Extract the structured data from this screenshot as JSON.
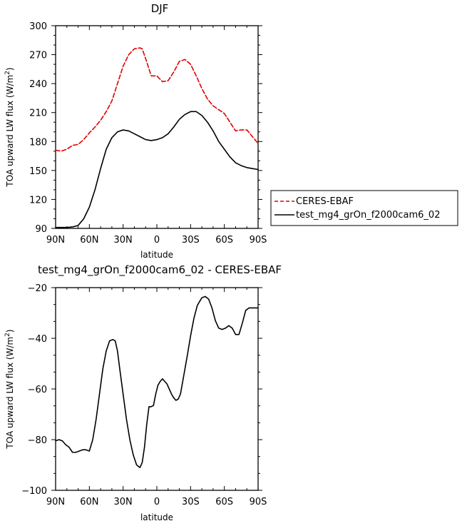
{
  "chart_data": [
    {
      "type": "line",
      "title": "DJF",
      "xlabel": "latitude",
      "ylabel": "TOA upward LW flux (W/m²)",
      "ylabel_prefix": "TOA upward LW flux (W/m",
      "ylabel_sup": "2",
      "ylabel_suffix": ")",
      "xlim": [
        90,
        -90
      ],
      "ylim": [
        90,
        300
      ],
      "x_ticks": [
        90,
        60,
        30,
        0,
        -30,
        -60,
        -90
      ],
      "x_tick_labels": [
        "90N",
        "60N",
        "30N",
        "0",
        "30S",
        "60S",
        "90S"
      ],
      "y_ticks": [
        90,
        120,
        150,
        180,
        210,
        240,
        270,
        300
      ],
      "y_tick_labels": [
        "90",
        "120",
        "150",
        "180",
        "210",
        "240",
        "270",
        "300"
      ],
      "legend_position": "right",
      "series": [
        {
          "name": "CERES-EBAF",
          "color": "#e00000",
          "dash": "dashed",
          "x": [
            90,
            85,
            80,
            75,
            70,
            65,
            60,
            55,
            50,
            45,
            40,
            35,
            30,
            25,
            20,
            15,
            13,
            10,
            5,
            0,
            -5,
            -10,
            -15,
            -20,
            -25,
            -30,
            -35,
            -40,
            -45,
            -50,
            -55,
            -60,
            -65,
            -70,
            -75,
            -80,
            -85,
            -90
          ],
          "y": [
            171,
            170,
            172,
            176,
            177,
            182,
            189,
            195,
            202,
            211,
            222,
            240,
            258,
            270,
            276,
            277,
            276,
            266,
            248,
            248,
            242,
            243,
            252,
            263,
            265,
            260,
            248,
            235,
            224,
            217,
            213,
            209,
            200,
            191,
            192,
            192,
            185,
            178
          ]
        },
        {
          "name": "test_mg4_grOn_f2000cam6_02",
          "color": "#000000",
          "dash": "solid",
          "x": [
            90,
            85,
            80,
            75,
            70,
            65,
            60,
            55,
            50,
            45,
            40,
            35,
            30,
            25,
            20,
            15,
            10,
            5,
            0,
            -5,
            -10,
            -15,
            -20,
            -25,
            -30,
            -35,
            -40,
            -45,
            -50,
            -55,
            -60,
            -65,
            -70,
            -75,
            -80,
            -85,
            -90
          ],
          "y": [
            91,
            91,
            91,
            91.5,
            93,
            100,
            112,
            130,
            152,
            172,
            184,
            190,
            192,
            191,
            188,
            185,
            182,
            181,
            182,
            184,
            188,
            195,
            203,
            208,
            211,
            211,
            207,
            200,
            191,
            180,
            172,
            164,
            158,
            155,
            153,
            152,
            151
          ]
        }
      ]
    },
    {
      "type": "line",
      "title": "test_mg4_grOn_f2000cam6_02 - CERES-EBAF",
      "xlabel": "latitude",
      "ylabel": "TOA upward LW flux (W/m²)",
      "ylabel_prefix": "TOA upward LW flux (W/m",
      "ylabel_sup": "2",
      "ylabel_suffix": ")",
      "xlim": [
        90,
        -90
      ],
      "ylim": [
        -100,
        -20
      ],
      "x_ticks": [
        90,
        60,
        30,
        0,
        -30,
        -60,
        -90
      ],
      "x_tick_labels": [
        "90N",
        "60N",
        "30N",
        "0",
        "30S",
        "60S",
        "90S"
      ],
      "y_ticks": [
        -100,
        -80,
        -60,
        -40,
        -20
      ],
      "y_tick_labels": [
        "−100",
        "−80",
        "−60",
        "−40",
        "−20"
      ],
      "series": [
        {
          "color": "#000000",
          "dash": "solid",
          "x": [
            90,
            87,
            84,
            81,
            78,
            75,
            72,
            69,
            66,
            63,
            60,
            57,
            54,
            51,
            48,
            45,
            42,
            39,
            37,
            35,
            33,
            30,
            27,
            24,
            21,
            18,
            15,
            13,
            11,
            9,
            7,
            5,
            3,
            1,
            -1,
            -3,
            -5,
            -7,
            -9,
            -11,
            -13,
            -15,
            -17,
            -19,
            -21,
            -23,
            -25,
            -27,
            -30,
            -33,
            -36,
            -40,
            -43,
            -46,
            -49,
            -52,
            -55,
            -58,
            -61,
            -64,
            -67,
            -70,
            -73,
            -76,
            -79,
            -82,
            -85,
            -88,
            -90
          ],
          "y": [
            -80.5,
            -80,
            -80.5,
            -82,
            -83,
            -85,
            -85,
            -84.5,
            -84,
            -84,
            -84.5,
            -80,
            -72,
            -62,
            -52,
            -45,
            -41,
            -40.5,
            -41,
            -45,
            -52,
            -62,
            -72,
            -80,
            -86,
            -90,
            -91,
            -89,
            -83,
            -74,
            -67,
            -67,
            -66.5,
            -62,
            -58.5,
            -57,
            -56,
            -57,
            -58,
            -60,
            -62,
            -63.5,
            -64.5,
            -64,
            -62,
            -57,
            -52,
            -47,
            -39,
            -32,
            -27,
            -24,
            -23.5,
            -24.5,
            -28,
            -33,
            -36,
            -36.5,
            -36,
            -35,
            -36,
            -38.5,
            -38.5,
            -34,
            -29,
            -28,
            -28,
            -28,
            -28
          ]
        }
      ]
    }
  ]
}
